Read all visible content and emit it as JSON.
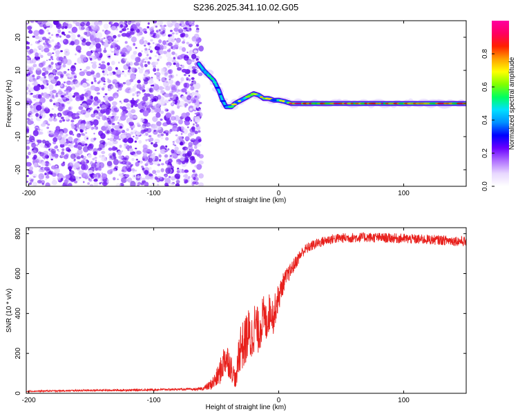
{
  "figure_title": "S236.2025.341.10.02.G05",
  "chart_data": [
    {
      "type": "heatmap",
      "title": "S236.2025.341.10.02.G05",
      "xlabel": "Height of straight line (km)",
      "ylabel": "Frequency (Hz)",
      "xlim": [
        -202,
        150
      ],
      "ylim": [
        -25,
        25
      ],
      "xticks": [
        -200,
        -100,
        0,
        100
      ],
      "yticks": [
        -20,
        -10,
        0,
        10,
        20
      ],
      "xtick_labels": [
        "-200",
        "-100",
        "0",
        "100"
      ],
      "ytick_labels": [
        "-20",
        "-10",
        "0",
        "10",
        "20"
      ],
      "noise_region_x": [
        -202,
        -62
      ],
      "signal_track": [
        {
          "x": -64,
          "y": 12
        },
        {
          "x": -60,
          "y": 10
        },
        {
          "x": -56,
          "y": 8.5
        },
        {
          "x": -52,
          "y": 7
        },
        {
          "x": -48,
          "y": 4
        },
        {
          "x": -45,
          "y": 1
        },
        {
          "x": -42,
          "y": -1
        },
        {
          "x": -38,
          "y": -1
        },
        {
          "x": -35,
          "y": 0
        },
        {
          "x": -30,
          "y": 1
        },
        {
          "x": -25,
          "y": 2
        },
        {
          "x": -20,
          "y": 3
        },
        {
          "x": -16,
          "y": 2.5
        },
        {
          "x": -12,
          "y": 1.5
        },
        {
          "x": -8,
          "y": 1.5
        },
        {
          "x": -4,
          "y": 1
        },
        {
          "x": 0,
          "y": 1
        },
        {
          "x": 5,
          "y": 0.6
        },
        {
          "x": 10,
          "y": 0
        },
        {
          "x": 150,
          "y": 0
        }
      ],
      "colorbar": {
        "label": "Normalized spectral amplitude",
        "range": [
          0,
          1
        ],
        "ticks": [
          0.0,
          0.2,
          0.4,
          0.6,
          0.8
        ],
        "tick_labels": [
          "0.0",
          "0.2",
          "0.4",
          "0.6",
          "0.8"
        ],
        "colors": [
          "#ffffff",
          "#e8d8ff",
          "#b070ff",
          "#6a00ff",
          "#0000ff",
          "#0090ff",
          "#00e0ff",
          "#00ff60",
          "#80ff00",
          "#ffff00",
          "#ffa000",
          "#ff2000",
          "#ff0060",
          "#ff00a0"
        ]
      }
    },
    {
      "type": "line",
      "title": "",
      "xlabel": "Height of straight line (km)",
      "ylabel": "SNR (10 * v/v)",
      "xlim": [
        -202,
        150
      ],
      "ylim": [
        0,
        830
      ],
      "xticks": [
        -200,
        -100,
        0,
        100
      ],
      "yticks": [
        0,
        200,
        400,
        600,
        800
      ],
      "xtick_labels": [
        "-200",
        "-100",
        "0",
        "100"
      ],
      "ytick_labels": [
        "0",
        "200",
        "400",
        "600",
        "800"
      ],
      "series": [
        {
          "name": "SNR",
          "color": "#e8201c",
          "x": [
            -202,
            -180,
            -160,
            -140,
            -120,
            -100,
            -80,
            -65,
            -60,
            -55,
            -50,
            -46,
            -43,
            -40,
            -37,
            -34,
            -32,
            -30,
            -28,
            -26,
            -24,
            -22,
            -20,
            -18,
            -16,
            -14,
            -12,
            -10,
            -8,
            -6,
            -4,
            -2,
            0,
            2,
            4,
            6,
            8,
            10,
            12,
            14,
            16,
            18,
            20,
            25,
            30,
            35,
            40,
            45,
            50,
            60,
            70,
            80,
            90,
            100,
            110,
            120,
            130,
            140,
            150
          ],
          "y": [
            10,
            12,
            14,
            15,
            16,
            18,
            20,
            20,
            25,
            40,
            70,
            120,
            180,
            160,
            110,
            60,
            200,
            250,
            230,
            280,
            300,
            260,
            330,
            340,
            300,
            360,
            380,
            350,
            400,
            420,
            380,
            450,
            480,
            520,
            560,
            580,
            600,
            620,
            640,
            660,
            680,
            700,
            715,
            735,
            750,
            760,
            770,
            775,
            778,
            780,
            782,
            780,
            778,
            775,
            772,
            770,
            768,
            765,
            760
          ],
          "noise_amplitude": [
            3,
            4,
            4,
            4,
            5,
            5,
            5,
            6,
            10,
            25,
            45,
            70,
            90,
            80,
            60,
            40,
            110,
            130,
            120,
            130,
            130,
            120,
            130,
            120,
            110,
            120,
            110,
            100,
            100,
            90,
            90,
            80,
            70,
            60,
            50,
            45,
            40,
            38,
            36,
            34,
            32,
            30,
            28,
            26,
            25,
            25,
            25,
            25,
            25,
            25,
            25,
            25,
            25,
            25,
            25,
            25,
            25,
            25,
            25
          ]
        }
      ]
    }
  ]
}
